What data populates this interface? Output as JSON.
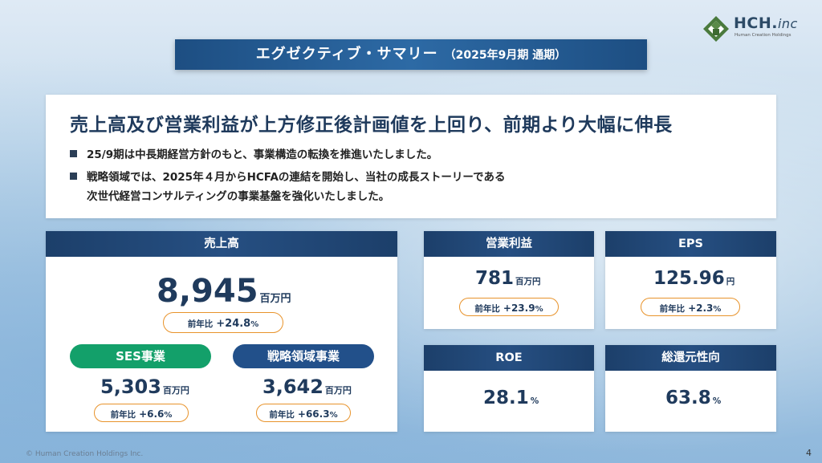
{
  "logo": {
    "name": "HCH.",
    "suffix": "inc",
    "tagline": "Human Creation Holdings",
    "brand_color": "#4a7a3d"
  },
  "title": {
    "main": "エグゼクティブ・サマリー",
    "sub": "（2025年9月期 通期）"
  },
  "summary": {
    "headline": "売上高及び営業利益が上方修正後計画値を上回り、前期より大幅に伸長",
    "bullet1": "25/9期は中長期経営方針のもと、事業構造の転換を推進いたしました。",
    "bullet2_line1": "戦略領域では、2025年４月からHCFAの連結を開始し、当社の成長ストーリーである",
    "bullet2_line2": "次世代経営コンサルティングの事業基盤を強化いたしました。"
  },
  "sales": {
    "label": "売上高",
    "value": "8,945",
    "unit": "百万円",
    "yoy_label": "前年比",
    "yoy_value": "+24.8",
    "yoy_pct": "%",
    "segments": [
      {
        "label": "SES事業",
        "value": "5,303",
        "unit": "百万円",
        "yoy_label": "前年比",
        "yoy_value": "+6.6",
        "yoy_pct": "%",
        "color": "#13a06a"
      },
      {
        "label": "戦略領域事業",
        "value": "3,642",
        "unit": "百万円",
        "yoy_label": "前年比",
        "yoy_value": "+66.3",
        "yoy_pct": "%",
        "color": "#22508a"
      }
    ]
  },
  "kpis": {
    "operating_profit": {
      "label": "営業利益",
      "value": "781",
      "unit": "百万円",
      "yoy_label": "前年比",
      "yoy_value": "+23.9",
      "yoy_pct": "%"
    },
    "eps": {
      "label": "EPS",
      "value": "125.96",
      "unit": "円",
      "yoy_label": "前年比",
      "yoy_value": "+2.3",
      "yoy_pct": "%"
    },
    "roe": {
      "label": "ROE",
      "value": "28.1",
      "unit": "%"
    },
    "payout": {
      "label": "総還元性向",
      "value": "63.8",
      "unit": "%"
    }
  },
  "footer": {
    "copyright": "© Human Creation Holdings Inc.",
    "page": "4"
  }
}
